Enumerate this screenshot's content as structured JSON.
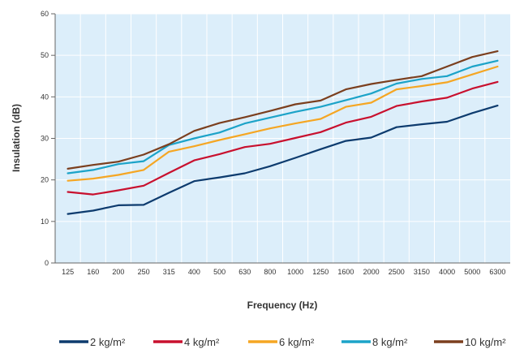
{
  "chart_data": {
    "type": "line",
    "xlabel": "Frequency (Hz)",
    "ylabel": "Insulation (dB)",
    "categories": [
      "125",
      "160",
      "200",
      "250",
      "315",
      "400",
      "500",
      "630",
      "800",
      "1000",
      "1250",
      "1600",
      "2000",
      "2500",
      "3150",
      "4000",
      "5000",
      "6300"
    ],
    "ylim": [
      0,
      60
    ],
    "yticks": [
      0,
      10,
      20,
      30,
      40,
      50,
      60
    ],
    "grid": true,
    "legend_position": "bottom",
    "series": [
      {
        "name": "2 kg/m²",
        "color": "#0d3b6e",
        "values": [
          11.8,
          12.6,
          13.9,
          14.0,
          16.9,
          19.7,
          20.6,
          21.6,
          23.3,
          25.3,
          27.4,
          29.4,
          30.2,
          32.7,
          33.4,
          34.0,
          36.1,
          37.9
        ]
      },
      {
        "name": "4 kg/m²",
        "color": "#c8102e",
        "values": [
          17.1,
          16.5,
          17.5,
          18.6,
          21.7,
          24.7,
          26.2,
          27.9,
          28.7,
          30.1,
          31.5,
          33.8,
          35.2,
          37.8,
          38.9,
          39.8,
          42.0,
          43.6
        ]
      },
      {
        "name": "6 kg/m²",
        "color": "#f5a623",
        "values": [
          19.8,
          20.3,
          21.2,
          22.4,
          26.8,
          28.1,
          29.6,
          31.0,
          32.4,
          33.6,
          34.7,
          37.6,
          38.6,
          41.8,
          42.6,
          43.5,
          45.4,
          47.3
        ]
      },
      {
        "name": "8 kg/m²",
        "color": "#1ca3c8",
        "values": [
          21.6,
          22.4,
          23.8,
          24.5,
          28.4,
          30.0,
          31.4,
          33.6,
          35.0,
          36.4,
          37.6,
          39.2,
          40.8,
          43.2,
          44.3,
          45.0,
          47.3,
          48.7
        ]
      },
      {
        "name": "10 kg/m²",
        "color": "#7b3f1e",
        "values": [
          22.7,
          23.6,
          24.4,
          26.1,
          28.6,
          31.8,
          33.7,
          35.1,
          36.6,
          38.2,
          39.1,
          41.8,
          43.1,
          44.1,
          45.0,
          47.3,
          49.6,
          51.0
        ]
      }
    ]
  }
}
